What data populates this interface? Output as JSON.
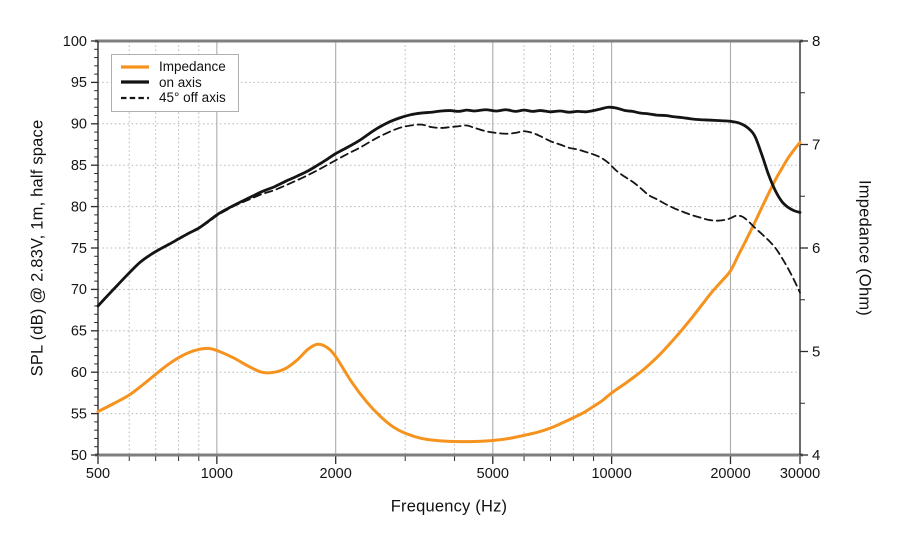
{
  "chart_data": {
    "type": "line",
    "title": "",
    "x_axis": {
      "label": "Frequency (Hz)",
      "scale": "log",
      "range": [
        500,
        30000
      ],
      "major_ticks": [
        500,
        1000,
        2000,
        5000,
        10000,
        20000,
        30000
      ],
      "major_tick_labels": [
        "500",
        "1000",
        "2000",
        "5000",
        "10000",
        "20000",
        "30000"
      ],
      "minor_ticks": [
        600,
        700,
        800,
        900,
        3000,
        4000,
        6000,
        7000,
        8000,
        9000
      ],
      "grid_solid": [
        1000,
        2000,
        5000,
        10000,
        20000
      ],
      "grid_dotted": [
        600,
        700,
        800,
        900,
        3000,
        4000,
        6000,
        7000,
        8000,
        9000
      ]
    },
    "y_left_axis": {
      "label": "SPL (dB) @ 2.83V, 1m, half space",
      "range": [
        50,
        100
      ],
      "major_ticks": [
        50,
        55,
        60,
        65,
        70,
        75,
        80,
        85,
        90,
        95,
        100
      ],
      "major_tick_labels": [
        "50",
        "55",
        "60",
        "65",
        "70",
        "75",
        "80",
        "85",
        "90",
        "95",
        "100"
      ],
      "minor_tick_step": 1,
      "grid_dotted": [
        55,
        60,
        65,
        70,
        75,
        80,
        85,
        90,
        95
      ]
    },
    "y_right_axis": {
      "label": "Impedance (Ohm)",
      "range": [
        4,
        8
      ],
      "major_ticks": [
        4,
        5,
        6,
        7,
        8
      ],
      "major_tick_labels": [
        "4",
        "5",
        "6",
        "7",
        "8"
      ],
      "minor_tick_step": 0.5
    },
    "legend": {
      "position": "top-left"
    },
    "series": [
      {
        "name": "Impedance",
        "axis": "right",
        "color": "#F6921E",
        "line_style": "solid",
        "width": 3,
        "points": [
          [
            500,
            4.42
          ],
          [
            550,
            4.5
          ],
          [
            600,
            4.58
          ],
          [
            650,
            4.68
          ],
          [
            700,
            4.78
          ],
          [
            750,
            4.87
          ],
          [
            800,
            4.94
          ],
          [
            850,
            4.99
          ],
          [
            900,
            5.02
          ],
          [
            950,
            5.03
          ],
          [
            1000,
            5.01
          ],
          [
            1100,
            4.94
          ],
          [
            1200,
            4.86
          ],
          [
            1300,
            4.8
          ],
          [
            1400,
            4.8
          ],
          [
            1500,
            4.84
          ],
          [
            1600,
            4.92
          ],
          [
            1700,
            5.02
          ],
          [
            1800,
            5.07
          ],
          [
            1900,
            5.04
          ],
          [
            2000,
            4.95
          ],
          [
            2200,
            4.7
          ],
          [
            2400,
            4.51
          ],
          [
            2600,
            4.37
          ],
          [
            2800,
            4.27
          ],
          [
            3000,
            4.21
          ],
          [
            3300,
            4.16
          ],
          [
            3600,
            4.14
          ],
          [
            4000,
            4.13
          ],
          [
            4500,
            4.13
          ],
          [
            5000,
            4.14
          ],
          [
            5500,
            4.16
          ],
          [
            6000,
            4.19
          ],
          [
            6500,
            4.22
          ],
          [
            7000,
            4.26
          ],
          [
            7500,
            4.31
          ],
          [
            8000,
            4.36
          ],
          [
            8500,
            4.41
          ],
          [
            9000,
            4.47
          ],
          [
            9500,
            4.53
          ],
          [
            10000,
            4.6
          ],
          [
            11000,
            4.71
          ],
          [
            12000,
            4.82
          ],
          [
            13000,
            4.94
          ],
          [
            14000,
            5.07
          ],
          [
            15000,
            5.2
          ],
          [
            16000,
            5.33
          ],
          [
            17000,
            5.46
          ],
          [
            18000,
            5.58
          ],
          [
            19000,
            5.68
          ],
          [
            20000,
            5.78
          ],
          [
            21000,
            5.94
          ],
          [
            22000,
            6.09
          ],
          [
            23000,
            6.24
          ],
          [
            24000,
            6.39
          ],
          [
            25000,
            6.53
          ],
          [
            26000,
            6.66
          ],
          [
            27000,
            6.77
          ],
          [
            28000,
            6.87
          ],
          [
            29000,
            6.95
          ],
          [
            30000,
            7.02
          ]
        ]
      },
      {
        "name": "on axis",
        "axis": "left",
        "color": "#141414",
        "line_style": "solid",
        "width": 2.8,
        "points": [
          [
            500,
            68.0
          ],
          [
            530,
            69.3
          ],
          [
            560,
            70.5
          ],
          [
            600,
            72.0
          ],
          [
            640,
            73.3
          ],
          [
            680,
            74.2
          ],
          [
            720,
            74.9
          ],
          [
            760,
            75.5
          ],
          [
            800,
            76.1
          ],
          [
            850,
            76.8
          ],
          [
            900,
            77.4
          ],
          [
            950,
            78.2
          ],
          [
            1000,
            79.0
          ],
          [
            1060,
            79.7
          ],
          [
            1120,
            80.3
          ],
          [
            1200,
            81.0
          ],
          [
            1300,
            81.8
          ],
          [
            1400,
            82.4
          ],
          [
            1500,
            83.1
          ],
          [
            1600,
            83.7
          ],
          [
            1700,
            84.3
          ],
          [
            1800,
            85.0
          ],
          [
            1900,
            85.7
          ],
          [
            2000,
            86.4
          ],
          [
            2150,
            87.2
          ],
          [
            2300,
            88.0
          ],
          [
            2500,
            89.2
          ],
          [
            2700,
            90.1
          ],
          [
            2900,
            90.7
          ],
          [
            3100,
            91.1
          ],
          [
            3300,
            91.3
          ],
          [
            3500,
            91.4
          ],
          [
            3700,
            91.55
          ],
          [
            3900,
            91.6
          ],
          [
            4100,
            91.5
          ],
          [
            4300,
            91.65
          ],
          [
            4500,
            91.55
          ],
          [
            4800,
            91.7
          ],
          [
            5100,
            91.55
          ],
          [
            5400,
            91.7
          ],
          [
            5700,
            91.5
          ],
          [
            6000,
            91.65
          ],
          [
            6300,
            91.5
          ],
          [
            6600,
            91.6
          ],
          [
            7000,
            91.45
          ],
          [
            7400,
            91.55
          ],
          [
            7800,
            91.4
          ],
          [
            8200,
            91.5
          ],
          [
            8600,
            91.45
          ],
          [
            9000,
            91.6
          ],
          [
            9400,
            91.8
          ],
          [
            9800,
            92.0
          ],
          [
            10300,
            91.9
          ],
          [
            10800,
            91.6
          ],
          [
            11300,
            91.5
          ],
          [
            11800,
            91.3
          ],
          [
            12400,
            91.2
          ],
          [
            13000,
            91.05
          ],
          [
            13700,
            91.0
          ],
          [
            14400,
            90.85
          ],
          [
            15100,
            90.75
          ],
          [
            15900,
            90.6
          ],
          [
            16700,
            90.5
          ],
          [
            17600,
            90.45
          ],
          [
            18500,
            90.4
          ],
          [
            19400,
            90.35
          ],
          [
            20000,
            90.3
          ],
          [
            21000,
            90.1
          ],
          [
            22000,
            89.6
          ],
          [
            23000,
            88.6
          ],
          [
            24000,
            86.3
          ],
          [
            25000,
            83.8
          ],
          [
            26000,
            81.9
          ],
          [
            27000,
            80.6
          ],
          [
            28000,
            79.9
          ],
          [
            29000,
            79.5
          ],
          [
            30000,
            79.3
          ]
        ]
      },
      {
        "name": "45° off axis",
        "axis": "left",
        "color": "#141414",
        "line_style": "dashed",
        "width": 1.8,
        "points": [
          [
            500,
            68.0
          ],
          [
            530,
            69.3
          ],
          [
            560,
            70.5
          ],
          [
            600,
            72.0
          ],
          [
            640,
            73.3
          ],
          [
            680,
            74.2
          ],
          [
            720,
            74.9
          ],
          [
            760,
            75.5
          ],
          [
            800,
            76.1
          ],
          [
            850,
            76.8
          ],
          [
            900,
            77.4
          ],
          [
            950,
            78.1
          ],
          [
            1000,
            78.9
          ],
          [
            1060,
            79.6
          ],
          [
            1120,
            80.2
          ],
          [
            1200,
            80.8
          ],
          [
            1300,
            81.5
          ],
          [
            1400,
            82.0
          ],
          [
            1500,
            82.6
          ],
          [
            1600,
            83.2
          ],
          [
            1700,
            83.8
          ],
          [
            1800,
            84.4
          ],
          [
            1900,
            85.0
          ],
          [
            2000,
            85.6
          ],
          [
            2150,
            86.4
          ],
          [
            2300,
            87.1
          ],
          [
            2500,
            88.1
          ],
          [
            2700,
            88.9
          ],
          [
            2900,
            89.5
          ],
          [
            3100,
            89.8
          ],
          [
            3300,
            89.9
          ],
          [
            3500,
            89.6
          ],
          [
            3700,
            89.5
          ],
          [
            3900,
            89.6
          ],
          [
            4100,
            89.7
          ],
          [
            4300,
            89.8
          ],
          [
            4500,
            89.5
          ],
          [
            4800,
            89.1
          ],
          [
            5100,
            88.9
          ],
          [
            5400,
            88.8
          ],
          [
            5700,
            88.9
          ],
          [
            6000,
            89.1
          ],
          [
            6300,
            88.9
          ],
          [
            6600,
            88.5
          ],
          [
            7000,
            87.9
          ],
          [
            7400,
            87.5
          ],
          [
            7800,
            87.1
          ],
          [
            8200,
            86.9
          ],
          [
            8600,
            86.6
          ],
          [
            9000,
            86.3
          ],
          [
            9400,
            85.9
          ],
          [
            9800,
            85.3
          ],
          [
            10300,
            84.3
          ],
          [
            10800,
            83.6
          ],
          [
            11300,
            83.0
          ],
          [
            11800,
            82.3
          ],
          [
            12400,
            81.4
          ],
          [
            13000,
            80.9
          ],
          [
            13700,
            80.3
          ],
          [
            14400,
            79.8
          ],
          [
            15100,
            79.4
          ],
          [
            15900,
            79.0
          ],
          [
            16700,
            78.7
          ],
          [
            17600,
            78.4
          ],
          [
            18500,
            78.3
          ],
          [
            19400,
            78.4
          ],
          [
            20000,
            78.6
          ],
          [
            20700,
            78.9
          ],
          [
            21400,
            78.8
          ],
          [
            22000,
            78.4
          ],
          [
            23000,
            77.5
          ],
          [
            24000,
            76.7
          ],
          [
            25000,
            75.9
          ],
          [
            26000,
            75.0
          ],
          [
            27000,
            73.8
          ],
          [
            28000,
            72.5
          ],
          [
            29000,
            71.1
          ],
          [
            30000,
            69.6
          ]
        ]
      }
    ]
  },
  "styles": {
    "grid_solid_color": "#ababab",
    "grid_dotted_color": "#b9b9b9",
    "spine_horizontal_color": "#7f7f7f",
    "spine_vertical_color": "#2b2b2b",
    "tick_color": "#2b2b2b",
    "text_color": "#141414",
    "legend_border_color": "#b0b0b0",
    "background": "#ffffff"
  }
}
